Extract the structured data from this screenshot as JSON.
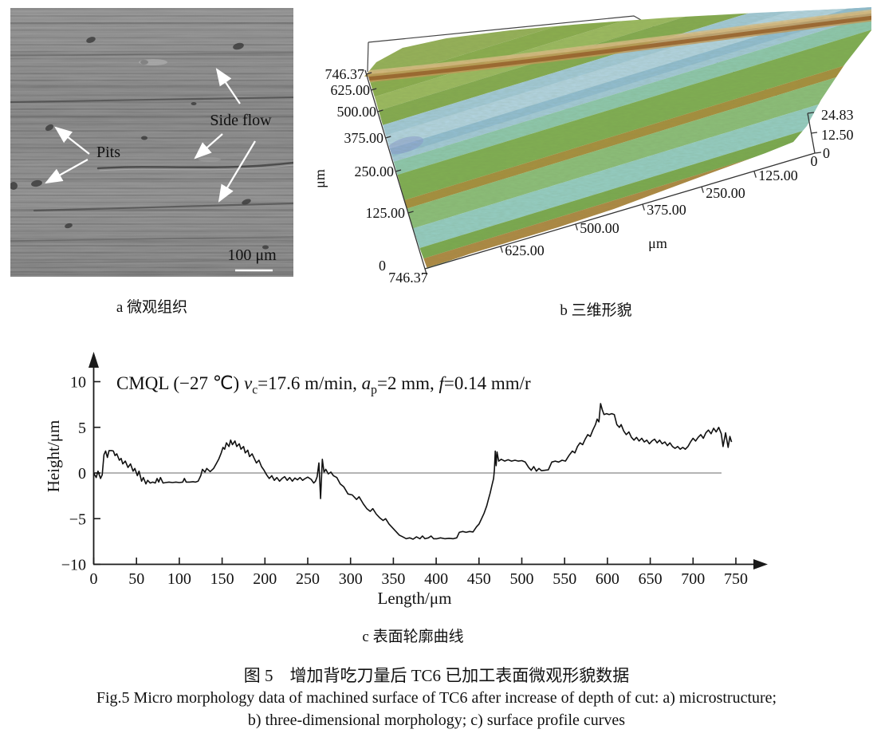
{
  "figure": {
    "caption_zh": "图 5　增加背吃刀量后 TC6 已加工表面微观形貌数据",
    "caption_en_line1": "Fig.5 Micro morphology data of machined surface of TC6 after increase of depth of cut: a) microstructure;",
    "caption_en_line2": "b) three-dimensional morphology; c) surface profile curves"
  },
  "panel_a": {
    "caption": "a 微观组织",
    "pits_label": "Pits",
    "side_flow_label": "Side flow",
    "scale_bar_label": "100 μm"
  },
  "panel_b": {
    "caption": "b 三维形貌",
    "y_axis_unit": "μm",
    "x_axis_unit": "μm",
    "y_ticks": [
      "746.37",
      "625.00",
      "500.00",
      "375.00",
      "250.00",
      "125.00",
      "0"
    ],
    "x_ticks": [
      "746.37",
      "625.00",
      "500.00",
      "375.00",
      "250.00",
      "125.00",
      "0"
    ],
    "z_ticks": [
      "24.83",
      "12.50",
      "0"
    ]
  },
  "panel_c": {
    "caption": "c 表面轮廓曲线"
  },
  "chart_data": {
    "type": "line",
    "title": "",
    "xlabel": "Length/μm",
    "ylabel": "Height/μm",
    "xlim": [
      0,
      750
    ],
    "ylim": [
      -10,
      10
    ],
    "x_ticks": [
      0,
      50,
      100,
      150,
      200,
      250,
      300,
      350,
      400,
      450,
      500,
      550,
      600,
      650,
      700,
      750
    ],
    "y_ticks": [
      -10,
      -5,
      0,
      5,
      10
    ],
    "grid": false,
    "zero_line": true,
    "legend": "none",
    "annotation": "CMQL (−27 ℃) vc=17.6 m/min, ap=2 mm, f=0.14 mm/r",
    "annotation_parts": [
      {
        "t": "CMQL (−27 ℃) ",
        "s": "n"
      },
      {
        "t": "v",
        "s": "i"
      },
      {
        "t": "c",
        "s": "sub"
      },
      {
        "t": "=17.6 m/min, ",
        "s": "n"
      },
      {
        "t": "a",
        "s": "i"
      },
      {
        "t": "p",
        "s": "sub"
      },
      {
        "t": "=2 mm, ",
        "s": "n"
      },
      {
        "t": "f",
        "s": "i"
      },
      {
        "t": "=0.14 mm/r",
        "s": "n"
      }
    ],
    "series": [
      {
        "name": "surface profile",
        "x": [
          0,
          3,
          5,
          8,
          10,
          12,
          14,
          16,
          18,
          21,
          23,
          25,
          27,
          30,
          32,
          34,
          37,
          40,
          43,
          46,
          48,
          51,
          53,
          56,
          58,
          61,
          63,
          66,
          69,
          72,
          74,
          76,
          78,
          81,
          84,
          88,
          92,
          96,
          100,
          104,
          106,
          108,
          112,
          116,
          119,
          122,
          125,
          127,
          130,
          132,
          136,
          140,
          143,
          146,
          149,
          151,
          153,
          155,
          158,
          160,
          162,
          165,
          167,
          170,
          172,
          175,
          177,
          180,
          182,
          185,
          188,
          190,
          193,
          196,
          199,
          202,
          205,
          208,
          211,
          214,
          217,
          220,
          223,
          226,
          229,
          232,
          235,
          238,
          241,
          244,
          247,
          250,
          254,
          257,
          259,
          261,
          263,
          265,
          267,
          269,
          271,
          274,
          277,
          280,
          284,
          288,
          292,
          297,
          302,
          307,
          310,
          315,
          319,
          323,
          326,
          330,
          334,
          338,
          341,
          345,
          349,
          353,
          357,
          361,
          365,
          369,
          373,
          377,
          381,
          384,
          387,
          391,
          394,
          397,
          401,
          405,
          410,
          415,
          420,
          424,
          427,
          431,
          435,
          439,
          443,
          447,
          450,
          453,
          456,
          459,
          461,
          463,
          465,
          467,
          468,
          469,
          470,
          471,
          473,
          476,
          480,
          484,
          488,
          492,
          496,
          500,
          504,
          508,
          511,
          514,
          517,
          520,
          523,
          527,
          531,
          535,
          539,
          543,
          547,
          551,
          555,
          559,
          562,
          565,
          568,
          571,
          574,
          577,
          580,
          583,
          586,
          588,
          590,
          592,
          594,
          596,
          599,
          602,
          605,
          608,
          611,
          614,
          616,
          619,
          622,
          625,
          628,
          631,
          634,
          637,
          640,
          643,
          646,
          649,
          652,
          655,
          658,
          661,
          664,
          667,
          670,
          673,
          676,
          679,
          682,
          685,
          688,
          691,
          694,
          697,
          700,
          703,
          706,
          709,
          712,
          715,
          718,
          721,
          724,
          727,
          730,
          733,
          735,
          738,
          741,
          743,
          745
        ],
        "y": [
          0,
          -0.5,
          0.2,
          -0.6,
          -0.2,
          2.0,
          2.4,
          1.7,
          2.45,
          2.45,
          2.4,
          1.9,
          2.1,
          1.4,
          1.6,
          1.0,
          1.3,
          0.6,
          1.0,
          0.2,
          0.5,
          -0.3,
          0.2,
          -0.9,
          -0.5,
          -1.2,
          -0.8,
          -1.1,
          -1.0,
          -1.1,
          -0.6,
          -1.0,
          -0.5,
          -1.1,
          -1.05,
          -1.0,
          -1.05,
          -1.0,
          -1.05,
          -1.0,
          -0.6,
          -1.0,
          -1.0,
          -0.95,
          -1.0,
          -0.9,
          -0.3,
          0.4,
          0.1,
          0.5,
          0.15,
          0.5,
          1.0,
          1.5,
          2.2,
          2.8,
          2.6,
          3.3,
          2.9,
          3.6,
          3.1,
          3.5,
          2.9,
          3.2,
          2.6,
          2.9,
          2.2,
          2.5,
          1.8,
          2.1,
          1.5,
          1.1,
          1.4,
          0.7,
          0.3,
          -0.2,
          -0.6,
          -0.3,
          -0.8,
          -0.5,
          -0.9,
          -0.6,
          -0.4,
          -0.8,
          -0.5,
          -0.9,
          -0.55,
          -0.75,
          -0.5,
          -0.8,
          -0.6,
          -0.45,
          -0.7,
          -1.1,
          -0.9,
          -0.4,
          1.1,
          -2.8,
          1.5,
          0.1,
          0.4,
          -0.1,
          0.1,
          -0.3,
          -0.5,
          -1.2,
          -1.5,
          -2.3,
          -2.4,
          -2.9,
          -2.6,
          -3.4,
          -3.9,
          -4.2,
          -3.9,
          -4.5,
          -4.9,
          -5.2,
          -5.0,
          -5.6,
          -6.0,
          -6.4,
          -6.8,
          -7.0,
          -7.2,
          -7.1,
          -7.25,
          -7.0,
          -7.2,
          -6.9,
          -7.2,
          -7.1,
          -6.9,
          -7.2,
          -7.2,
          -7.1,
          -7.2,
          -7.15,
          -7.2,
          -7.1,
          -6.5,
          -6.4,
          -6.5,
          -6.4,
          -6.45,
          -5.9,
          -5.6,
          -5.0,
          -4.4,
          -3.6,
          -2.9,
          -2.2,
          -1.4,
          -0.6,
          0.3,
          2.4,
          0.8,
          2.3,
          1.3,
          1.5,
          1.3,
          1.45,
          1.3,
          1.4,
          1.3,
          1.35,
          1.2,
          0.6,
          0.3,
          0.7,
          0.2,
          0.5,
          0.25,
          0.3,
          0.35,
          1.2,
          1.3,
          1.2,
          1.4,
          1.3,
          1.9,
          2.4,
          2.2,
          2.9,
          3.3,
          3.1,
          3.7,
          4.2,
          4.0,
          4.7,
          5.3,
          5.9,
          5.6,
          7.6,
          6.9,
          6.4,
          6.5,
          6.4,
          6.5,
          6.4,
          5.3,
          5.0,
          5.3,
          4.6,
          4.2,
          4.5,
          3.9,
          3.6,
          3.9,
          3.5,
          3.8,
          3.4,
          3.6,
          3.2,
          3.5,
          3.7,
          3.3,
          3.6,
          3.2,
          3.4,
          3.0,
          3.3,
          2.9,
          2.7,
          2.9,
          2.6,
          2.8,
          2.6,
          2.9,
          3.4,
          3.8,
          3.5,
          3.9,
          4.2,
          3.8,
          4.4,
          4.7,
          4.3,
          4.9,
          4.5,
          5.0,
          4.3,
          2.9,
          4.4,
          2.8,
          4.0,
          3.4
        ]
      }
    ]
  }
}
